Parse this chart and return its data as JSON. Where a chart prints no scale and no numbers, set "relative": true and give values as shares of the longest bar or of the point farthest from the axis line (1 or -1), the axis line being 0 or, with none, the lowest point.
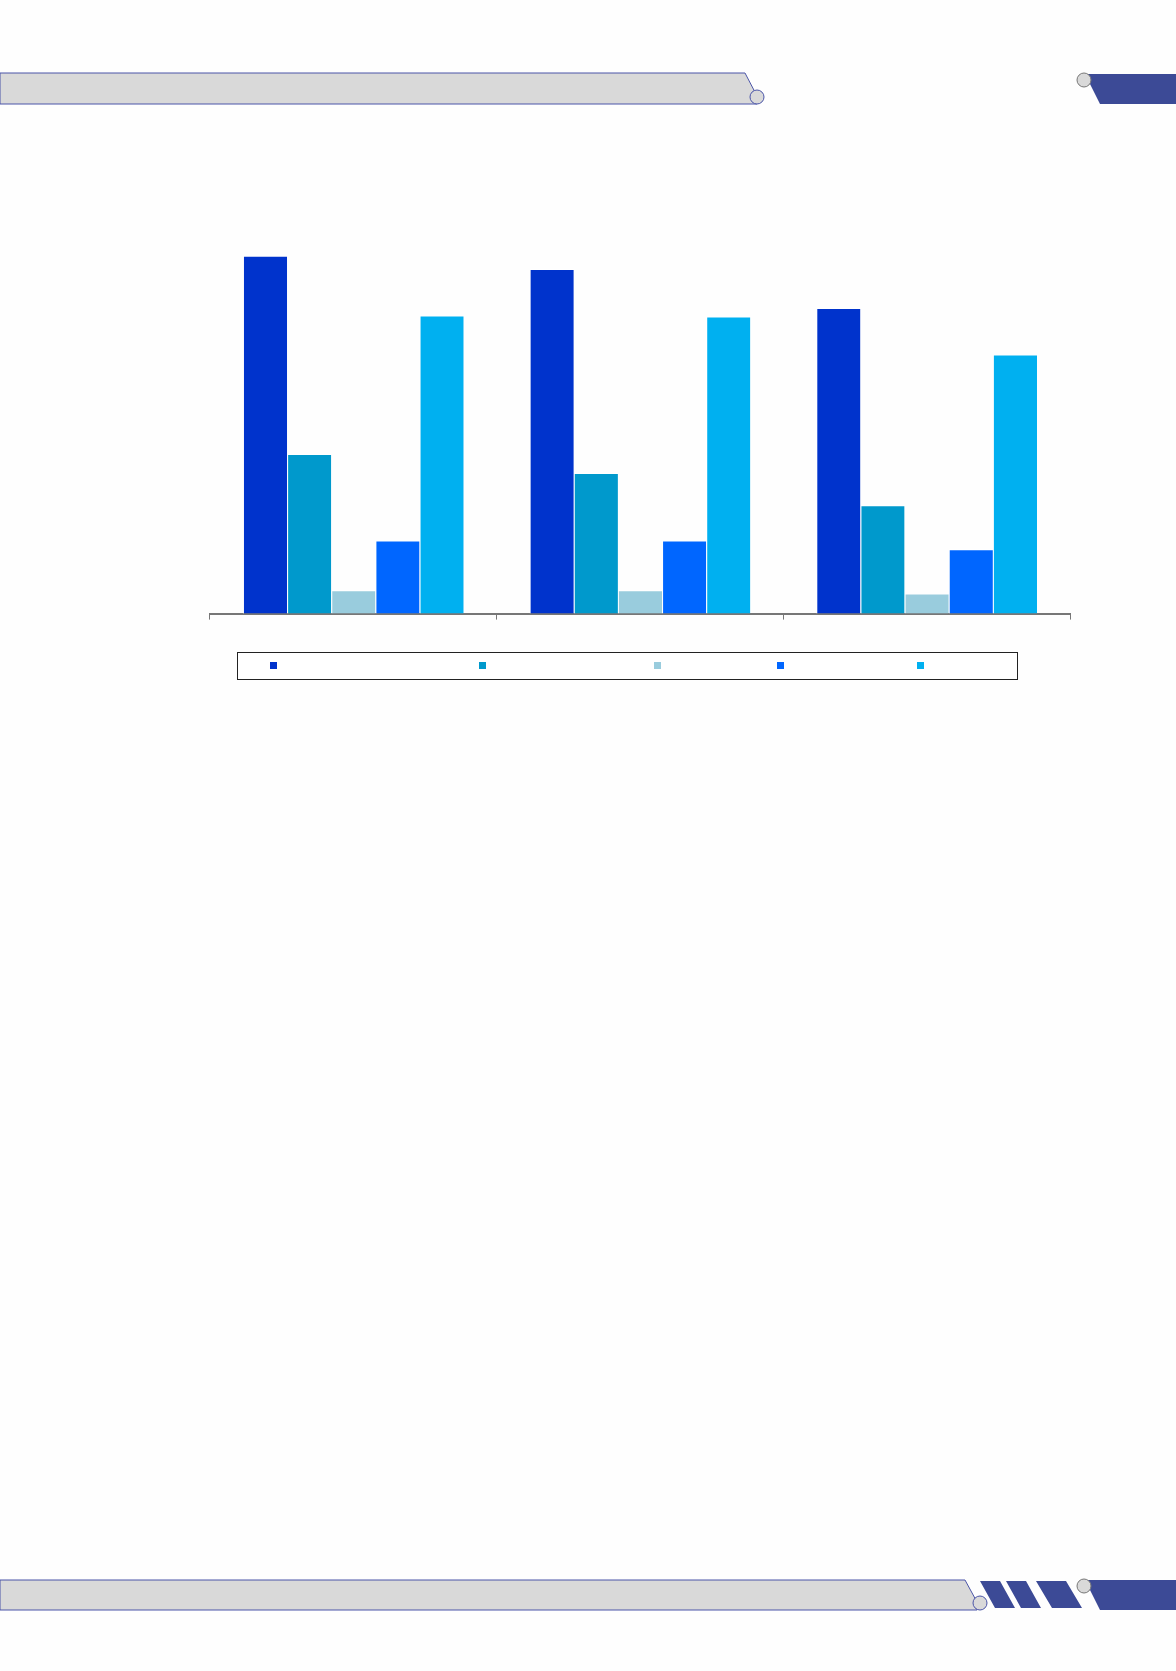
{
  "chart_data": {
    "type": "bar",
    "relative": true,
    "categories": [
      null,
      null,
      null
    ],
    "series": [
      {
        "color": "#0033cc",
        "values": [
          1,
          0.963,
          0.854
        ]
      },
      {
        "color": "#0099cc",
        "values": [
          0.446,
          0.393,
          0.303
        ]
      },
      {
        "color": "#99ccdd",
        "values": [
          0.065,
          0.065,
          0.056
        ]
      },
      {
        "color": "#0066ff",
        "values": [
          0.204,
          0.204,
          0.18
        ]
      },
      {
        "color": "#00b0f0",
        "values": [
          0.833,
          0.83,
          0.724
        ]
      }
    ],
    "grid": false
  }
}
